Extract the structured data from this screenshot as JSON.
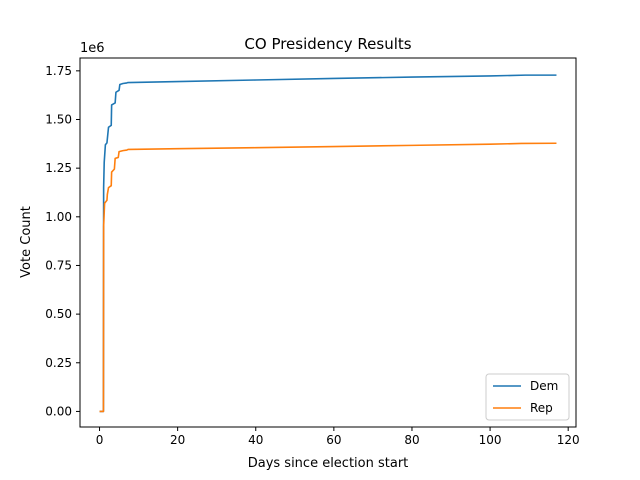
{
  "chart_data": {
    "type": "line",
    "title": "CO Presidency Results",
    "xlabel": "Days since election start",
    "ylabel": "Vote Count",
    "y_offset_label": "1e6",
    "xlim": [
      -5,
      122
    ],
    "ylim": [
      -80000,
      1816000
    ],
    "x_ticks": [
      0,
      20,
      40,
      60,
      80,
      100,
      120
    ],
    "x_tick_labels": [
      "0",
      "20",
      "40",
      "60",
      "80",
      "100",
      "120"
    ],
    "y_ticks": [
      0,
      250000,
      500000,
      750000,
      1000000,
      1250000,
      1500000,
      1750000
    ],
    "y_tick_labels": [
      "0.00",
      "0.25",
      "0.50",
      "0.75",
      "1.00",
      "1.25",
      "1.50",
      "1.75"
    ],
    "grid": false,
    "legend_position": "lower-right",
    "series": [
      {
        "name": "Dem",
        "color": "#1f77b4",
        "points": [
          [
            0,
            0
          ],
          [
            1,
            0
          ],
          [
            1.05,
            1150000
          ],
          [
            1.2,
            1280000
          ],
          [
            1.5,
            1370000
          ],
          [
            1.9,
            1380000
          ],
          [
            2,
            1400000
          ],
          [
            2.3,
            1460000
          ],
          [
            3,
            1470000
          ],
          [
            3.1,
            1575000
          ],
          [
            4,
            1585000
          ],
          [
            4.2,
            1640000
          ],
          [
            5,
            1650000
          ],
          [
            5.2,
            1680000
          ],
          [
            6,
            1685000
          ],
          [
            7,
            1688000
          ],
          [
            7.3,
            1690000
          ],
          [
            20,
            1695000
          ],
          [
            40,
            1703000
          ],
          [
            60,
            1711000
          ],
          [
            80,
            1718000
          ],
          [
            100,
            1724000
          ],
          [
            109,
            1728000
          ],
          [
            117,
            1728000
          ]
        ]
      },
      {
        "name": "Rep",
        "color": "#ff7f0e",
        "points": [
          [
            0,
            0
          ],
          [
            1,
            0
          ],
          [
            1.05,
            950000
          ],
          [
            1.3,
            1070000
          ],
          [
            1.9,
            1085000
          ],
          [
            2,
            1115000
          ],
          [
            2.3,
            1150000
          ],
          [
            3,
            1160000
          ],
          [
            3.1,
            1230000
          ],
          [
            3.8,
            1245000
          ],
          [
            4,
            1300000
          ],
          [
            4.8,
            1305000
          ],
          [
            5,
            1335000
          ],
          [
            6,
            1340000
          ],
          [
            7,
            1343000
          ],
          [
            7.3,
            1346000
          ],
          [
            20,
            1350000
          ],
          [
            40,
            1355000
          ],
          [
            60,
            1361000
          ],
          [
            80,
            1367000
          ],
          [
            100,
            1373000
          ],
          [
            108,
            1377000
          ],
          [
            117,
            1378000
          ]
        ]
      }
    ]
  }
}
